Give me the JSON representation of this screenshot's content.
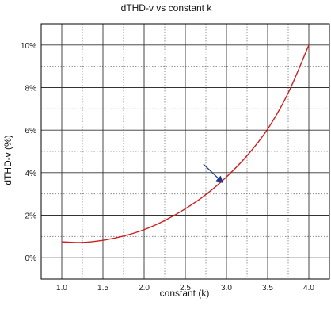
{
  "chart_data": {
    "type": "line",
    "title": "dTHD-v vs constant k",
    "xlabel": "constant (k)",
    "ylabel": "dTHD-v (%)",
    "xlim": [
      0.75,
      4.25
    ],
    "ylim": [
      -1,
      11
    ],
    "x_ticks": [
      1.0,
      1.5,
      2.0,
      2.5,
      3.0,
      3.5,
      4.0
    ],
    "x_tick_labels": [
      "1.0",
      "1.5",
      "2.0",
      "2.5",
      "3.0",
      "3.5",
      "4.0"
    ],
    "y_ticks": [
      0,
      2,
      4,
      6,
      8,
      10
    ],
    "y_tick_labels": [
      "0%",
      "2%",
      "4%",
      "6%",
      "8%",
      "10%"
    ],
    "grid": true,
    "minor_grid": "dotted",
    "series": [
      {
        "color": "#cc1f1f",
        "x": [
          1.0,
          1.25,
          1.5,
          1.75,
          2.0,
          2.25,
          2.5,
          2.75,
          3.0,
          3.25,
          3.5,
          3.75,
          4.0
        ],
        "y": [
          0.75,
          0.72,
          0.82,
          1.02,
          1.32,
          1.75,
          2.3,
          2.97,
          3.8,
          4.8,
          6.05,
          7.75,
          10.0
        ]
      }
    ],
    "annotations": [
      {
        "type": "arrow",
        "color": "#1f3a8a",
        "from": [
          2.72,
          4.4
        ],
        "to": [
          2.95,
          3.55
        ]
      }
    ]
  }
}
